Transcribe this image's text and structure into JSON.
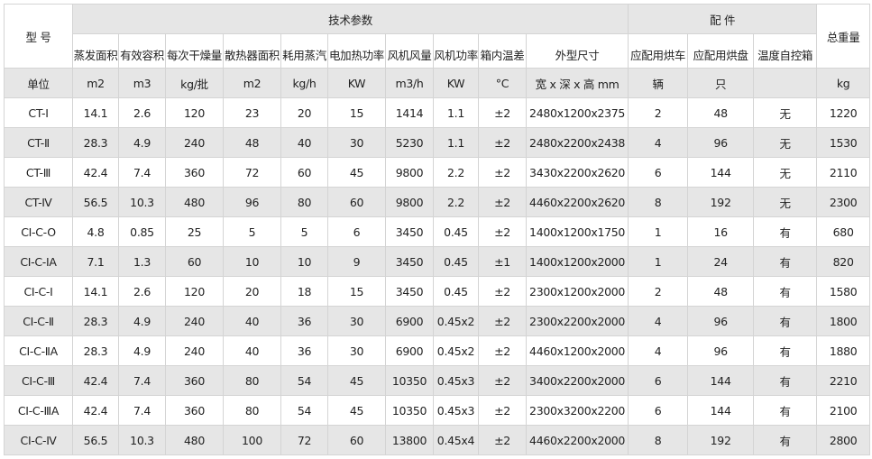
{
  "header": {
    "model": "型 号",
    "tech_group": "技术参数",
    "parts_group": "配 件",
    "total_weight": "总重量",
    "columns": [
      "蒸发面积",
      "有效容积",
      "每次干燥量",
      "散热器面积",
      "耗用蒸汽",
      "电加热功率",
      "风机风量",
      "风机功率",
      "箱内温差",
      "外型尺寸",
      "应配用烘车",
      "应配用烘盘",
      "温度自控箱"
    ],
    "units_label": "单位",
    "units": [
      "m2",
      "m3",
      "kg/批",
      "m2",
      "kg/h",
      "KW",
      "m3/h",
      "KW",
      "°C",
      "宽 x 深 x 高 mm",
      "辆",
      "只",
      "",
      "kg"
    ]
  },
  "rows": [
    [
      "CT-Ⅰ",
      "14.1",
      "2.6",
      "120",
      "23",
      "20",
      "15",
      "1414",
      "1.1",
      "±2",
      "2480x1200x2375",
      "2",
      "48",
      "无",
      "1220"
    ],
    [
      "CT-Ⅱ",
      "28.3",
      "4.9",
      "240",
      "48",
      "40",
      "30",
      "5230",
      "1.1",
      "±2",
      "2480x2200x2438",
      "4",
      "96",
      "无",
      "1530"
    ],
    [
      "CT-Ⅲ",
      "42.4",
      "7.4",
      "360",
      "72",
      "60",
      "45",
      "9800",
      "2.2",
      "±2",
      "3430x2200x2620",
      "6",
      "144",
      "无",
      "2110"
    ],
    [
      "CT-Ⅳ",
      "56.5",
      "10.3",
      "480",
      "96",
      "80",
      "60",
      "9800",
      "2.2",
      "±2",
      "4460x2200x2620",
      "8",
      "192",
      "无",
      "2300"
    ],
    [
      "CI-C-O",
      "4.8",
      "0.85",
      "25",
      "5",
      "5",
      "6",
      "3450",
      "0.45",
      "±2",
      "1400x1200x1750",
      "1",
      "16",
      "有",
      "680"
    ],
    [
      "CI-C-IA",
      "7.1",
      "1.3",
      "60",
      "10",
      "10",
      "9",
      "3450",
      "0.45",
      "±1",
      "1400x1200x2000",
      "1",
      "24",
      "有",
      "820"
    ],
    [
      "CI-C-Ⅰ",
      "14.1",
      "2.6",
      "120",
      "20",
      "18",
      "15",
      "3450",
      "0.45",
      "±2",
      "2300x1200x2000",
      "2",
      "48",
      "有",
      "1580"
    ],
    [
      "CI-C-Ⅱ",
      "28.3",
      "4.9",
      "240",
      "40",
      "36",
      "30",
      "6900",
      "0.45x2",
      "±2",
      "2300x2200x2000",
      "4",
      "96",
      "有",
      "1800"
    ],
    [
      "CI-C-ⅡA",
      "28.3",
      "4.9",
      "240",
      "40",
      "36",
      "30",
      "6900",
      "0.45x2",
      "±2",
      "4460x1200x2000",
      "4",
      "96",
      "有",
      "1880"
    ],
    [
      "CI-C-Ⅲ",
      "42.4",
      "7.4",
      "360",
      "80",
      "54",
      "45",
      "10350",
      "0.45x3",
      "±2",
      "3400x2200x2000",
      "6",
      "144",
      "有",
      "2210"
    ],
    [
      "CI-C-ⅢA",
      "42.4",
      "7.4",
      "360",
      "80",
      "54",
      "45",
      "10350",
      "0.45x3",
      "±2",
      "2300x3200x2200",
      "6",
      "144",
      "有",
      "2100"
    ],
    [
      "CI-C-Ⅳ",
      "56.5",
      "10.3",
      "480",
      "100",
      "72",
      "60",
      "13800",
      "0.45x4",
      "±2",
      "4460x2200x2000",
      "8",
      "192",
      "有",
      "2800"
    ]
  ]
}
